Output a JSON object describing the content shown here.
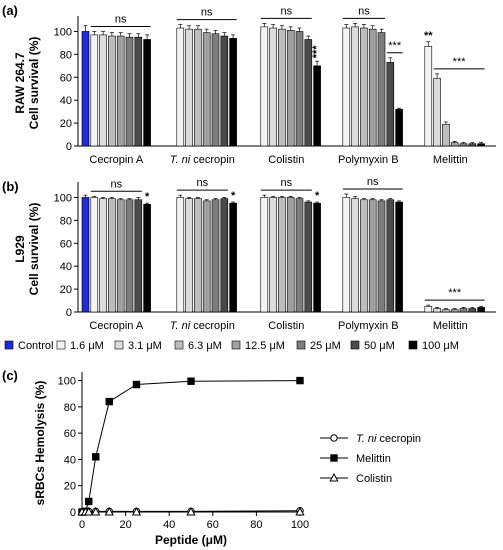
{
  "colors": {
    "Control": "#1f2bd4",
    "1.6 μM": "#f4f4f4",
    "3.1 μM": "#dcdcdc",
    "6.3 μM": "#bdbdbd",
    "12.5 μM": "#a0a0a0",
    "25 μM": "#7d7d7d",
    "50 μM": "#4a4a4a",
    "100 μM": "#000000"
  },
  "legend": {
    "entries": [
      "Control",
      "1.6 μM",
      "3.1 μM",
      "6.3 μM",
      "12.5 μM",
      "25 μM",
      "50 μM",
      "100 μM"
    ]
  },
  "chart_data": [
    {
      "panel": "(a)",
      "type": "bar",
      "ylabel_line1": "RAW 264.7",
      "ylabel_line2": "Cell survival (%)",
      "ylim": [
        0,
        110
      ],
      "yticks": [
        0,
        20,
        40,
        60,
        80,
        100
      ],
      "groups": [
        "Cecropin A",
        "T. ni cecropin",
        "Colistin",
        "Polymyxin B",
        "Melittin"
      ],
      "series": [
        "Control",
        "1.6 μM",
        "3.1 μM",
        "6.3 μM",
        "12.5 μM",
        "25 μM",
        "50 μM",
        "100 μM"
      ],
      "values": [
        [
          100,
          97,
          97,
          96,
          96,
          95,
          95,
          93
        ],
        [
          null,
          103,
          102,
          102,
          99,
          98,
          96,
          94
        ],
        [
          null,
          104,
          103,
          102,
          101,
          100,
          93,
          70
        ],
        [
          null,
          103,
          104,
          103,
          102,
          99,
          73,
          32
        ],
        [
          null,
          87,
          59,
          19,
          3,
          2,
          2,
          2
        ]
      ],
      "errors": [
        [
          5,
          3,
          3,
          3,
          3,
          3,
          3,
          4
        ],
        [
          null,
          3,
          3,
          3,
          3,
          3,
          3,
          3
        ],
        [
          null,
          3,
          3,
          3,
          3,
          3,
          3,
          4
        ],
        [
          null,
          3,
          3,
          3,
          3,
          3,
          4,
          1
        ],
        [
          null,
          4,
          4,
          2,
          1,
          1,
          1,
          1
        ]
      ],
      "significance": [
        {
          "group": 0,
          "from": 1,
          "to": 7,
          "text": "ns"
        },
        {
          "group": 1,
          "from": 1,
          "to": 7,
          "text": "ns"
        },
        {
          "group": 2,
          "from": 1,
          "to": 6,
          "text": "ns"
        },
        {
          "group": 3,
          "from": 1,
          "to": 5,
          "text": "ns"
        },
        {
          "group": 3,
          "from": 6,
          "to": 7,
          "text": "***"
        },
        {
          "group": 4,
          "from": 2,
          "to": 7,
          "text": "***"
        }
      ],
      "bar_marks": [
        {
          "group": 2,
          "index": 7,
          "text": "***",
          "vertical": true
        },
        {
          "group": 4,
          "index": 1,
          "text": "**",
          "vertical": false
        }
      ]
    },
    {
      "panel": "(b)",
      "type": "bar",
      "ylabel_line1": "L929",
      "ylabel_line2": "Cell survival (%)",
      "ylim": [
        0,
        110
      ],
      "yticks": [
        0,
        20,
        40,
        60,
        80,
        100
      ],
      "groups": [
        "Cecropin A",
        "T. ni cecropin",
        "Colistin",
        "Polymyxin B",
        "Melittin"
      ],
      "series": [
        "Control",
        "1.6 μM",
        "3.1 μM",
        "6.3 μM",
        "12.5 μM",
        "25 μM",
        "50 μM",
        "100 μM"
      ],
      "values": [
        [
          100,
          100,
          99,
          99,
          98,
          98,
          98,
          94
        ],
        [
          null,
          100,
          99,
          99,
          97,
          98,
          99,
          95
        ],
        [
          null,
          100,
          100,
          100,
          100,
          99,
          96,
          95
        ],
        [
          null,
          100,
          99,
          98,
          98,
          97,
          98,
          96
        ],
        [
          null,
          5,
          3,
          2,
          2,
          3,
          3,
          4
        ]
      ],
      "errors": [
        [
          2,
          1,
          1,
          1,
          1,
          1,
          2,
          1
        ],
        [
          null,
          2,
          1,
          1,
          1,
          1,
          1,
          1
        ],
        [
          null,
          2,
          1,
          1,
          1,
          1,
          1,
          1
        ],
        [
          null,
          3,
          2,
          1,
          1,
          1,
          1,
          1
        ],
        [
          null,
          1,
          1,
          1,
          1,
          1,
          1,
          1
        ]
      ],
      "significance": [
        {
          "group": 0,
          "from": 1,
          "to": 6,
          "text": "ns"
        },
        {
          "group": 1,
          "from": 1,
          "to": 6,
          "text": "ns"
        },
        {
          "group": 2,
          "from": 1,
          "to": 6,
          "text": "ns"
        },
        {
          "group": 3,
          "from": 1,
          "to": 7,
          "text": "ns"
        },
        {
          "group": 4,
          "from": 1,
          "to": 7,
          "text": "***"
        }
      ],
      "bar_marks": [
        {
          "group": 0,
          "index": 7,
          "text": "*",
          "vertical": false
        },
        {
          "group": 1,
          "index": 7,
          "text": "*",
          "vertical": false
        },
        {
          "group": 2,
          "index": 7,
          "text": "*",
          "vertical": false
        }
      ]
    },
    {
      "panel": "(c)",
      "type": "line",
      "ylabel": "sRBCs Hemolysis (%)",
      "xlabel": "Peptide (μM)",
      "xlim": [
        0,
        100
      ],
      "ylim": [
        0,
        105
      ],
      "xticks": [
        0,
        20,
        40,
        60,
        80,
        100
      ],
      "yticks": [
        0,
        20,
        40,
        60,
        80,
        100
      ],
      "x": [
        0,
        1.6,
        3.1,
        6.3,
        12.5,
        25,
        50,
        100
      ],
      "series": [
        {
          "name": "T. ni cecropin",
          "marker": "circle-open",
          "values": [
            0,
            0,
            0.5,
            0.5,
            0.5,
            0.5,
            0.5,
            1
          ]
        },
        {
          "name": "Melittin",
          "marker": "square-filled",
          "values": [
            0,
            0.5,
            8,
            42,
            84,
            97,
            99.5,
            100
          ]
        },
        {
          "name": "Colistin",
          "marker": "triangle-open",
          "values": [
            0,
            0,
            0,
            0,
            0,
            0,
            0,
            0
          ]
        }
      ]
    }
  ]
}
